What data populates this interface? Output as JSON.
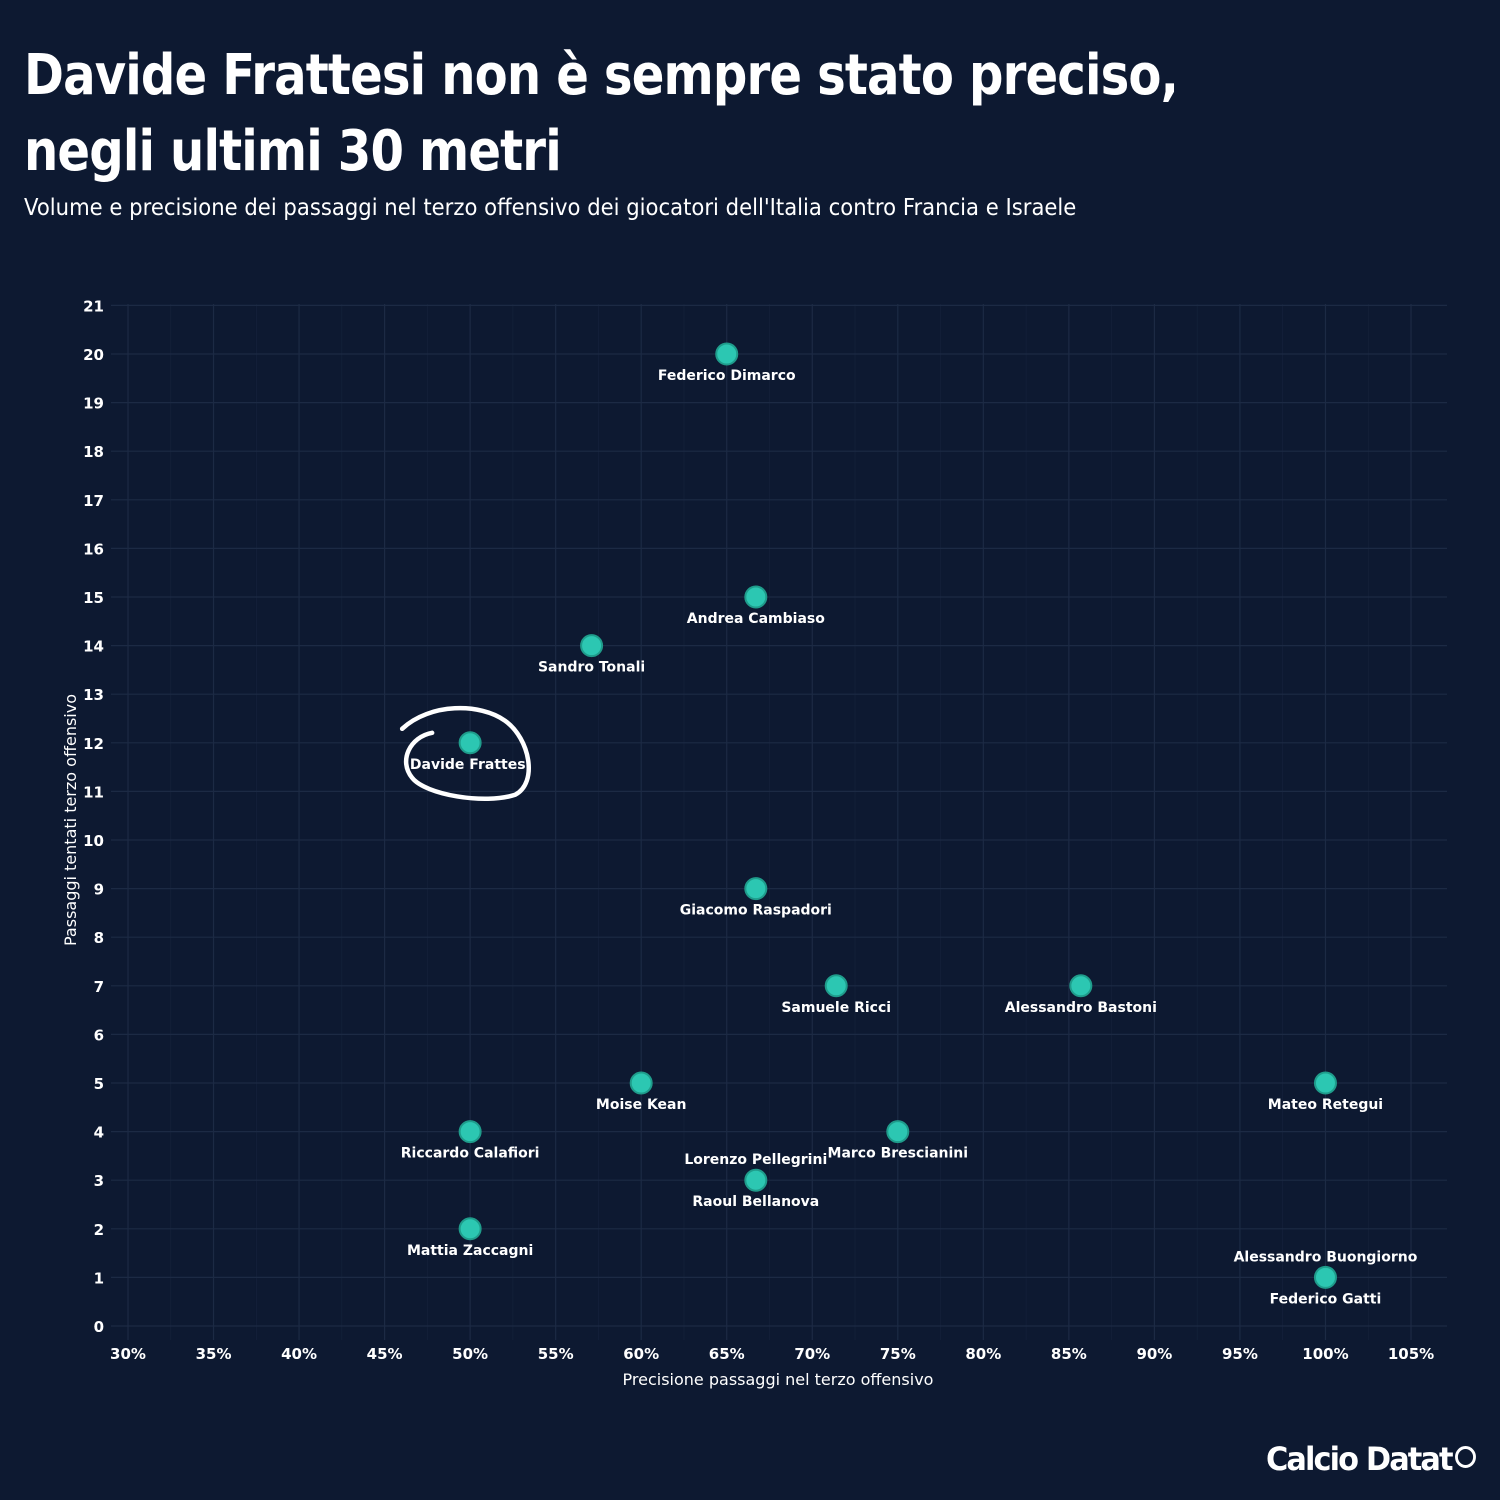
{
  "header": {
    "title_line1": "Davide Frattesi non è sempre stato preciso,",
    "title_line2": "negli ultimi 30 metri",
    "subtitle": "Volume e precisione dei passaggi nel terzo offensivo dei giocatori dell'Italia contro Francia e Israele"
  },
  "logo": {
    "text": "Calcio Datat",
    "registered": "®"
  },
  "colors": {
    "background": "#0d1931",
    "grid": "#1c2a44",
    "point_fill": "#2cc7b2",
    "point_stroke": "#1f9c8b",
    "text": "#ffffff",
    "highlight_circle": "#ffffff"
  },
  "chart_data": {
    "type": "scatter",
    "xlabel": "Precisione passaggi nel terzo offensivo",
    "ylabel": "Passaggi tentati terzo offensivo",
    "xlim": [
      30,
      105
    ],
    "ylim": [
      0,
      21
    ],
    "x_unit": "%",
    "grid": true,
    "x_ticks": [
      30,
      35,
      40,
      45,
      50,
      55,
      60,
      65,
      70,
      75,
      80,
      85,
      90,
      95,
      100,
      105
    ],
    "x_tick_labels": [
      "30%",
      "35%",
      "40%",
      "45%",
      "50%",
      "55%",
      "60%",
      "65%",
      "70%",
      "75%",
      "80%",
      "85%",
      "90%",
      "95%",
      "100%",
      "105%"
    ],
    "y_ticks": [
      0,
      1,
      2,
      3,
      4,
      5,
      6,
      7,
      8,
      9,
      10,
      11,
      12,
      13,
      14,
      15,
      16,
      17,
      18,
      19,
      20,
      21
    ],
    "y_tick_labels": [
      "0",
      "1",
      "2",
      "3",
      "4",
      "5",
      "6",
      "7",
      "8",
      "9",
      "10",
      "11",
      "12",
      "13",
      "14",
      "15",
      "16",
      "17",
      "18",
      "19",
      "20",
      "21"
    ],
    "points": [
      {
        "label": "Federico Dimarco",
        "x": 65.0,
        "y": 20,
        "label_pos": "below"
      },
      {
        "label": "Andrea Cambiaso",
        "x": 66.7,
        "y": 15,
        "label_pos": "below"
      },
      {
        "label": "Sandro Tonali",
        "x": 57.1,
        "y": 14,
        "label_pos": "below"
      },
      {
        "label": "Davide Frattesi",
        "x": 50.0,
        "y": 12,
        "label_pos": "below",
        "highlighted": true
      },
      {
        "label": "Giacomo Raspadori",
        "x": 66.7,
        "y": 9,
        "label_pos": "below"
      },
      {
        "label": "Samuele Ricci",
        "x": 71.4,
        "y": 7,
        "label_pos": "below"
      },
      {
        "label": "Alessandro Bastoni",
        "x": 85.7,
        "y": 7,
        "label_pos": "below"
      },
      {
        "label": "Moise Kean",
        "x": 60.0,
        "y": 5,
        "label_pos": "below"
      },
      {
        "label": "Mateo Retegui",
        "x": 100.0,
        "y": 5,
        "label_pos": "below"
      },
      {
        "label": "Riccardo Calafiori",
        "x": 50.0,
        "y": 4,
        "label_pos": "below"
      },
      {
        "label": "Marco Brescianini",
        "x": 75.0,
        "y": 4,
        "label_pos": "below"
      },
      {
        "label": "Lorenzo Pellegrini",
        "x": 66.7,
        "y": 3,
        "label_pos": "above"
      },
      {
        "label": "Raoul Bellanova",
        "x": 66.7,
        "y": 3,
        "label_pos": "below"
      },
      {
        "label": "Mattia Zaccagni",
        "x": 50.0,
        "y": 2,
        "label_pos": "below"
      },
      {
        "label": "Alessandro Buongiorno",
        "x": 100.0,
        "y": 1,
        "label_pos": "above"
      },
      {
        "label": "Federico Gatti",
        "x": 100.0,
        "y": 1,
        "label_pos": "below"
      }
    ]
  }
}
